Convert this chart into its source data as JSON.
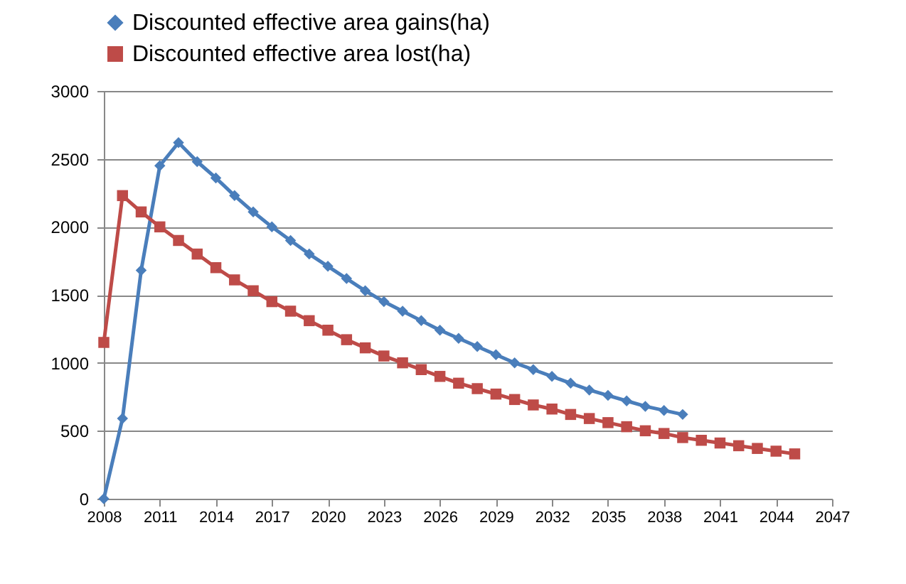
{
  "chart_data": {
    "type": "line",
    "x": [
      2008,
      2009,
      2010,
      2011,
      2012,
      2013,
      2014,
      2015,
      2016,
      2017,
      2018,
      2019,
      2020,
      2021,
      2022,
      2023,
      2024,
      2025,
      2026,
      2027,
      2028,
      2029,
      2030,
      2031,
      2032,
      2033,
      2034,
      2035,
      2036,
      2037,
      2038,
      2039
    ],
    "series": [
      {
        "name": "Discounted effective area gains(ha)",
        "color": "#4a7ebb",
        "marker": "diamond",
        "values": [
          0,
          590,
          1680,
          2450,
          2620,
          2480,
          2360,
          2230,
          2110,
          2000,
          1900,
          1800,
          1710,
          1620,
          1530,
          1450,
          1380,
          1310,
          1240,
          1180,
          1120,
          1060,
          1000,
          950,
          900,
          850,
          800,
          760,
          720,
          680,
          650,
          620
        ]
      },
      {
        "name": "Discounted effective area lost(ha)",
        "color": "#be4b48",
        "marker": "square",
        "x": [
          2008,
          2009,
          2010,
          2011,
          2012,
          2013,
          2014,
          2015,
          2016,
          2017,
          2018,
          2019,
          2020,
          2021,
          2022,
          2023,
          2024,
          2025,
          2026,
          2027,
          2028,
          2029,
          2030,
          2031,
          2032,
          2033,
          2034,
          2035,
          2036,
          2037,
          2038,
          2039,
          2040,
          2041,
          2042,
          2043,
          2044,
          2045
        ],
        "values": [
          1150,
          2230,
          2110,
          2000,
          1900,
          1800,
          1700,
          1610,
          1530,
          1450,
          1380,
          1310,
          1240,
          1170,
          1110,
          1050,
          1000,
          950,
          900,
          850,
          810,
          770,
          730,
          690,
          660,
          620,
          590,
          560,
          530,
          500,
          480,
          450,
          430,
          410,
          390,
          370,
          350,
          330
        ]
      }
    ],
    "xlim": [
      2008,
      2047
    ],
    "xticks": [
      2008,
      2011,
      2014,
      2017,
      2020,
      2023,
      2026,
      2029,
      2032,
      2035,
      2038,
      2041,
      2044,
      2047
    ],
    "ylim": [
      0,
      3000
    ],
    "yticks": [
      0,
      500,
      1000,
      1500,
      2000,
      2500,
      3000
    ],
    "grid": "y",
    "legend": "top"
  }
}
